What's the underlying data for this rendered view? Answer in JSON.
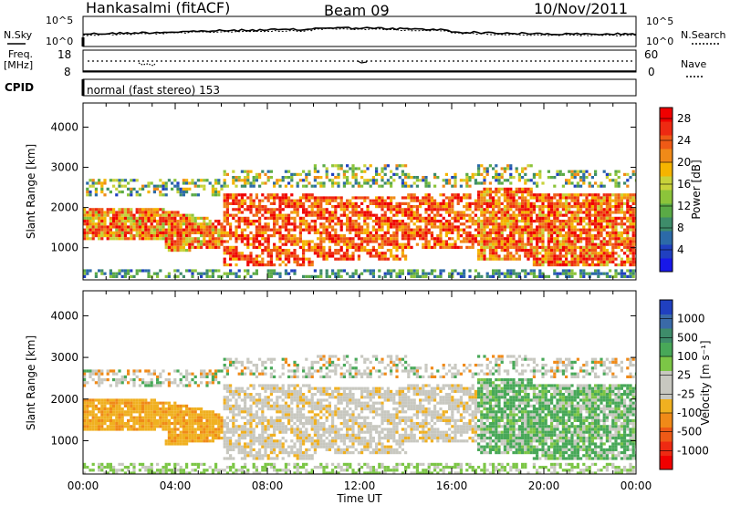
{
  "header": {
    "station": "Hankasalmi (fitACF)",
    "beam": "Beam 09",
    "date": "10/Nov/2011"
  },
  "noise": {
    "left_label": "N.Sky",
    "right_label": "N.Search",
    "top_tick_left": "10^5",
    "bottom_tick_left": "10^0",
    "top_tick_right": "10^5",
    "bottom_tick_right": "10^0"
  },
  "freq": {
    "label_line1": "Freq.",
    "label_line2": "[MHz]",
    "left_top": "18",
    "left_bottom": "8",
    "right_top": "60",
    "right_bottom": "0",
    "nave_label": "Nave"
  },
  "cpid": {
    "label": "CPID",
    "value": "normal (fast stereo) 153"
  },
  "colors": {
    "power_scale": [
      "#1818e8",
      "#2040c0",
      "#2c6aa8",
      "#3e8c6a",
      "#5aaa46",
      "#8cc43a",
      "#c8d23a",
      "#f5b400",
      "#f08a18",
      "#ef5a16",
      "#ee2a12",
      "#f00000"
    ],
    "velocity_scale": [
      "#2040c0",
      "#3a6aa8",
      "#3e8c6a",
      "#48a858",
      "#7cc646",
      "#c8c8c0",
      "#c8c8c0",
      "#f0b020",
      "#f08a18",
      "#ee5a16",
      "#ee2a12",
      "#f00000"
    ],
    "ground_scatter": "#c0c0b8"
  },
  "chart_data": [
    {
      "type": "heatmap",
      "name": "power",
      "xlabel": "Time UT",
      "ylabel": "Slant Range [km]",
      "x_ticks": [
        "00:00",
        "04:00",
        "08:00",
        "12:00",
        "16:00",
        "20:00",
        "00:00"
      ],
      "y_ticks": [
        "1000",
        "2000",
        "3000",
        "4000"
      ],
      "ylim": [
        200,
        4600
      ],
      "colorbar_label": "Power [dB]",
      "colorbar_ticks": [
        "4",
        "8",
        "12",
        "16",
        "20",
        "24",
        "28"
      ],
      "colorbar_range": [
        0,
        30
      ]
    },
    {
      "type": "heatmap",
      "name": "velocity",
      "xlabel": "Time UT",
      "ylabel": "Slant Range [km]",
      "x_ticks": [
        "00:00",
        "04:00",
        "08:00",
        "12:00",
        "16:00",
        "20:00",
        "00:00"
      ],
      "y_ticks": [
        "1000",
        "2000",
        "3000",
        "4000"
      ],
      "ylim": [
        200,
        4600
      ],
      "colorbar_label": "Velocity [m s⁻¹]",
      "colorbar_ticks": [
        "1000",
        "500",
        "100",
        "25",
        "-25",
        "-100",
        "-500",
        "-1000"
      ]
    }
  ],
  "x_axis": {
    "label": "Time UT",
    "ticks": [
      "00:00",
      "04:00",
      "08:00",
      "12:00",
      "16:00",
      "20:00",
      "00:00"
    ]
  }
}
